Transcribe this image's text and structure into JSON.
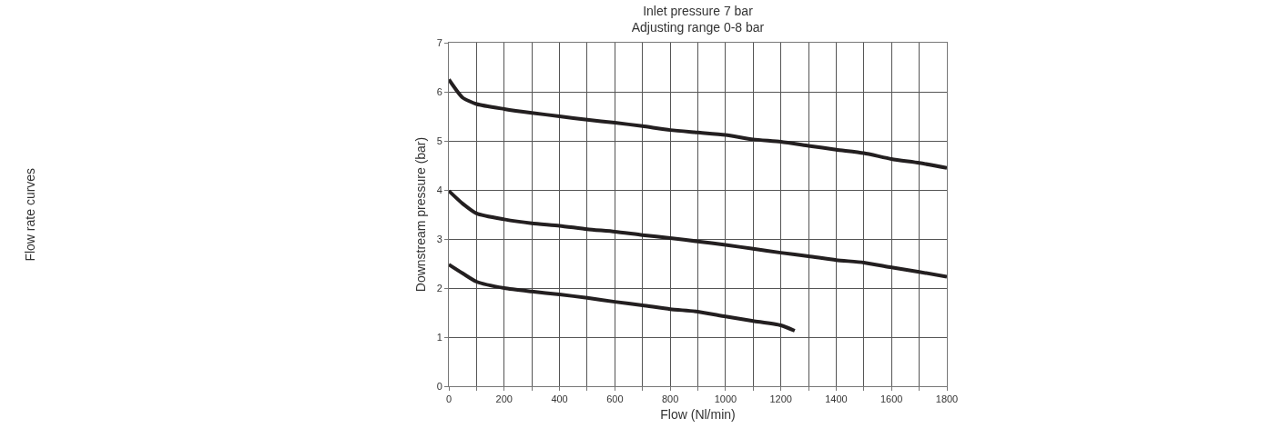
{
  "chart_data": {
    "type": "line",
    "title": "Inlet pressure 7 bar\nAdjusting range 0-8 bar",
    "xlabel": "Flow (Nl/min)",
    "ylabel": "Downstream pressure (bar)",
    "annotations": [
      "Flow rate curves"
    ],
    "series": [
      {
        "color": "#231f20",
        "x": [
          0,
          25,
          50,
          100,
          200,
          300,
          400,
          500,
          600,
          700,
          800,
          900,
          1000,
          1100,
          1200,
          1300,
          1400,
          1500,
          1600,
          1700,
          1800
        ],
        "values": [
          6.25,
          6.05,
          5.88,
          5.75,
          5.65,
          5.57,
          5.5,
          5.43,
          5.37,
          5.3,
          5.22,
          5.17,
          5.12,
          5.03,
          4.98,
          4.9,
          4.82,
          4.75,
          4.63,
          4.55,
          4.45
        ]
      },
      {
        "color": "#231f20",
        "x": [
          0,
          50,
          100,
          200,
          300,
          400,
          500,
          600,
          700,
          800,
          900,
          1000,
          1100,
          1200,
          1300,
          1400,
          1500,
          1600,
          1700,
          1800
        ],
        "values": [
          3.98,
          3.72,
          3.52,
          3.4,
          3.32,
          3.27,
          3.2,
          3.15,
          3.08,
          3.02,
          2.95,
          2.88,
          2.8,
          2.72,
          2.65,
          2.57,
          2.52,
          2.42,
          2.33,
          2.23
        ]
      },
      {
        "color": "#231f20",
        "x": [
          0,
          50,
          100,
          200,
          300,
          400,
          500,
          600,
          700,
          800,
          900,
          1000,
          1100,
          1200,
          1250
        ],
        "values": [
          2.48,
          2.3,
          2.13,
          2.0,
          1.93,
          1.87,
          1.8,
          1.72,
          1.65,
          1.57,
          1.52,
          1.42,
          1.33,
          1.24,
          1.13
        ]
      }
    ],
    "xlim": [
      0,
      1800
    ],
    "ylim": [
      0,
      7
    ],
    "xticks": [
      0,
      {
        "value": 100,
        "label": null
      },
      200,
      {
        "value": 300,
        "label": null
      },
      400,
      {
        "value": 500,
        "label": null
      },
      600,
      {
        "value": 700,
        "label": null
      },
      800,
      {
        "value": 900,
        "label": null
      },
      1000,
      {
        "value": 1100,
        "label": null
      },
      1200,
      {
        "value": 1300,
        "label": null
      },
      1400,
      {
        "value": 1500,
        "label": null
      },
      1600,
      {
        "value": 1700,
        "label": null
      },
      1800
    ],
    "yticks": [
      0,
      1,
      2,
      3,
      4,
      5,
      6,
      7
    ],
    "grid": true
  }
}
